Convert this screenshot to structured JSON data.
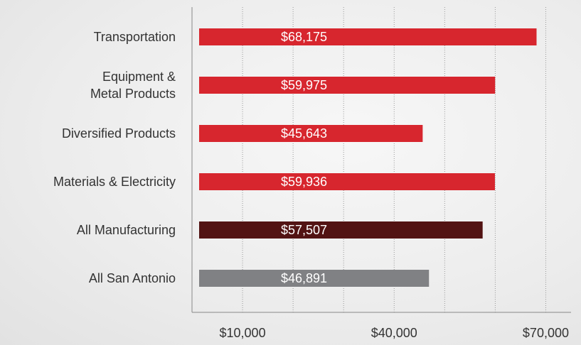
{
  "chart_data": {
    "type": "barh",
    "categories": [
      "Transportation",
      "Equipment &\nMetal Products",
      "Diversified Products",
      "Materials & Electricity",
      "All Manufacturing",
      "All San Antonio"
    ],
    "values": [
      68175,
      59975,
      45643,
      59936,
      57507,
      46891
    ],
    "value_labels": [
      "$68,175",
      "$59,975",
      "$45,643",
      "$59,936",
      "$57,507",
      "$46,891"
    ],
    "colors": [
      "#d7262e",
      "#d7262e",
      "#d7262e",
      "#d7262e",
      "#521313",
      "#808184"
    ],
    "xlim": [
      0,
      75000
    ],
    "xticks": [
      {
        "value": 10000,
        "label": "$10,000"
      },
      {
        "value": 40000,
        "label": "$40,000"
      },
      {
        "value": 70000,
        "label": "$70,000"
      }
    ],
    "xgrid": [
      10000,
      20000,
      30000,
      40000,
      50000,
      60000,
      70000
    ],
    "grid": true
  }
}
